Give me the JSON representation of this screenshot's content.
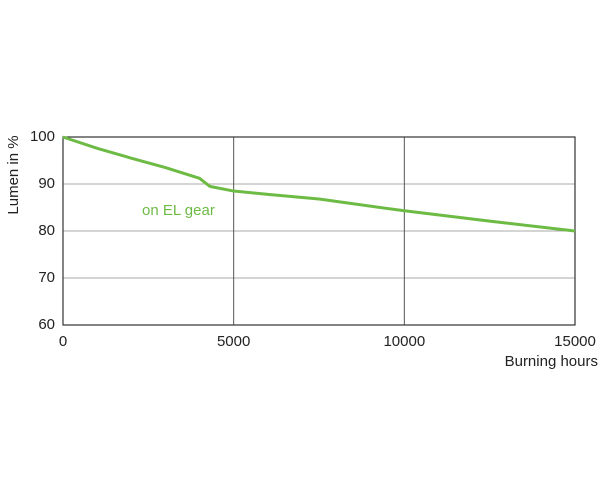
{
  "chart_data": {
    "type": "line",
    "x_label": "Burning hours",
    "y_label": "Lumen in %",
    "annotation": "on EL gear",
    "x": [
      0,
      1000,
      2000,
      3000,
      4000,
      4300,
      5000,
      6000,
      7500,
      10000,
      12500,
      15000
    ],
    "series": [
      {
        "name": "on EL gear",
        "color": "#6dbb45",
        "values": [
          100,
          97.6,
          95.5,
          93.5,
          91.2,
          89.5,
          88.5,
          87.8,
          86.8,
          84.3,
          82.1,
          80.0
        ]
      }
    ],
    "xlim": [
      0,
      15000
    ],
    "xticks": [
      0,
      5000,
      10000,
      15000
    ],
    "ylim": [
      60,
      100
    ],
    "yticks": [
      60,
      70,
      80,
      90,
      100
    ],
    "grid": true
  }
}
